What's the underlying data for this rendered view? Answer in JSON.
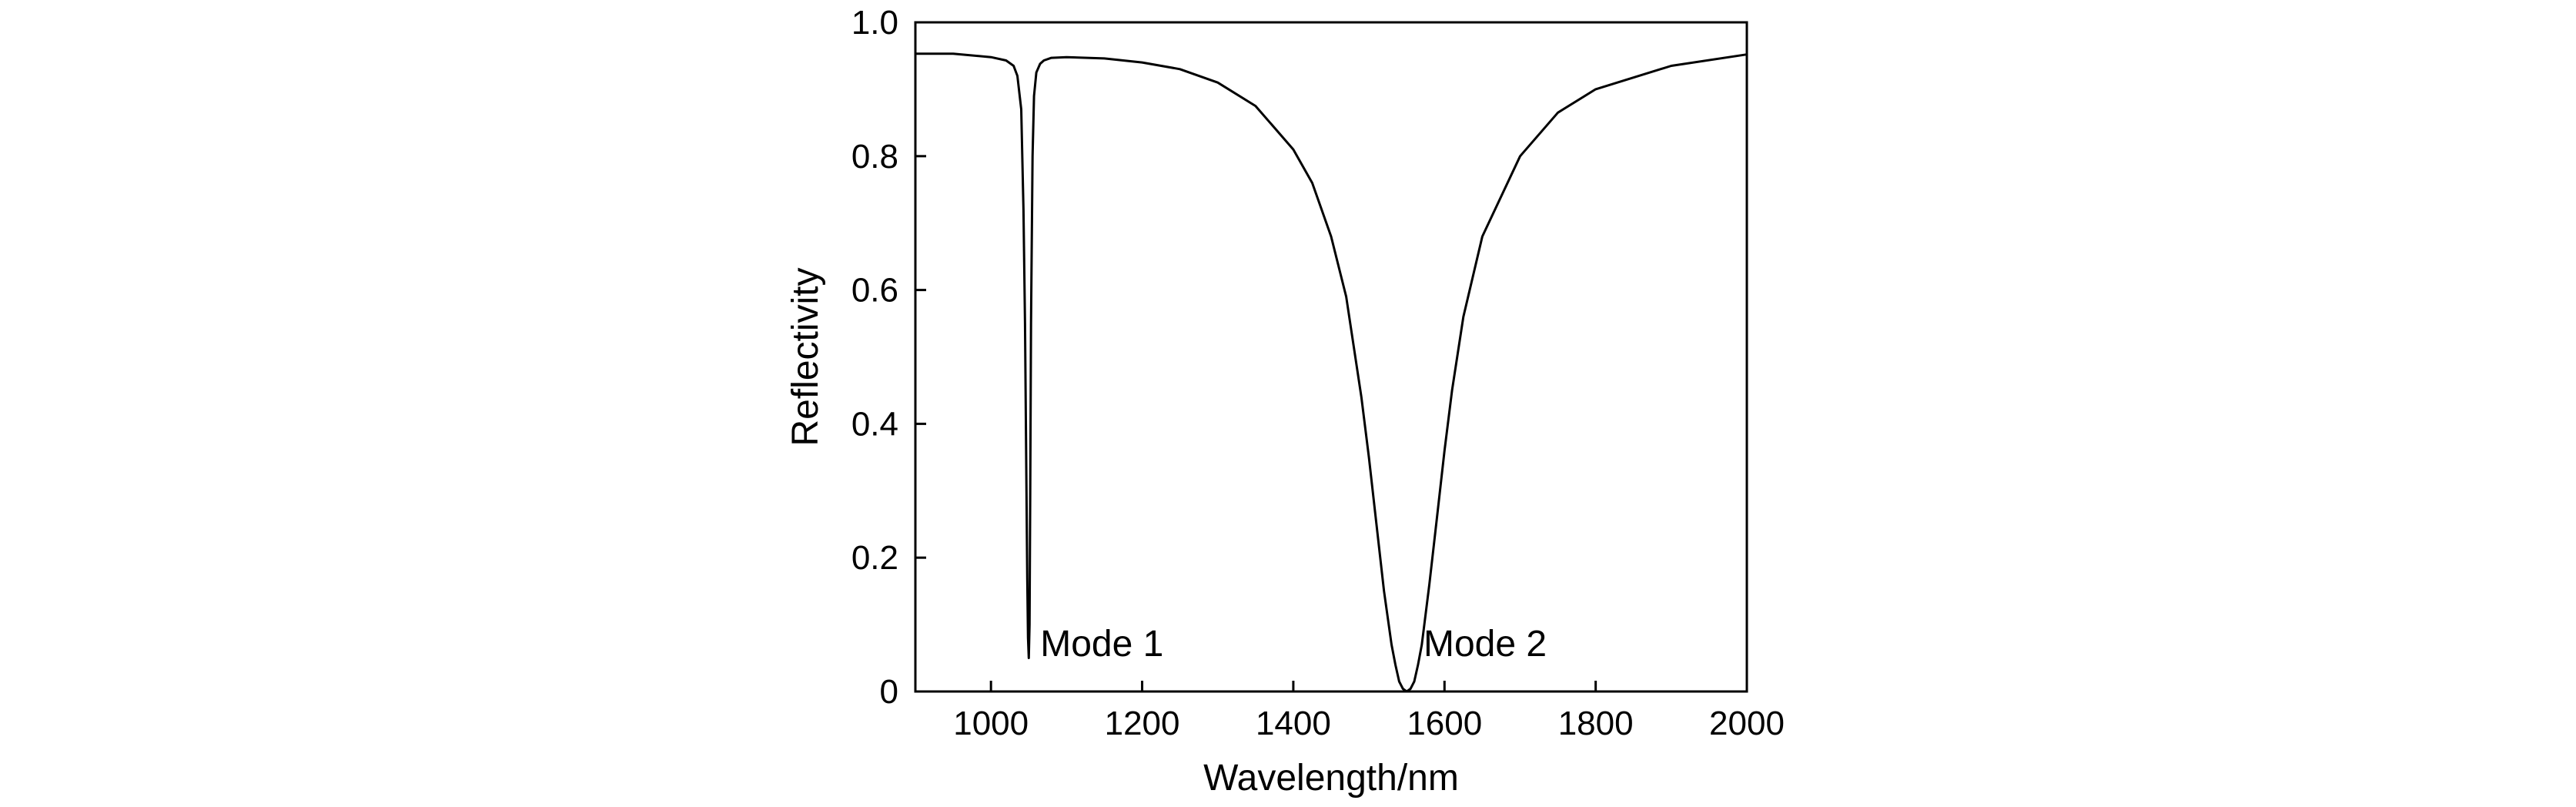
{
  "chart_data": {
    "type": "line",
    "title": "",
    "xlabel": "Wavelength/nm",
    "ylabel": "Reflectivity",
    "xlim": [
      900,
      2000
    ],
    "ylim": [
      0,
      1.0
    ],
    "xticks": [
      {
        "value": 1000,
        "label": "1000"
      },
      {
        "value": 1200,
        "label": "1200"
      },
      {
        "value": 1400,
        "label": "1400"
      },
      {
        "value": 1600,
        "label": "1600"
      },
      {
        "value": 1800,
        "label": "1800"
      },
      {
        "value": 2000,
        "label": "2000"
      }
    ],
    "yticks": [
      {
        "value": 0,
        "label": "0"
      },
      {
        "value": 0.2,
        "label": "0.2"
      },
      {
        "value": 0.4,
        "label": "0.4"
      },
      {
        "value": 0.6,
        "label": "0.6"
      },
      {
        "value": 0.8,
        "label": "0.8"
      },
      {
        "value": 1.0,
        "label": "1.0"
      }
    ],
    "grid": false,
    "legend": "none",
    "line_color": "#000000",
    "series": [
      {
        "x": [
          900,
          950,
          1000,
          1020,
          1030,
          1035,
          1040,
          1043,
          1045,
          1047,
          1048,
          1049,
          1050,
          1051,
          1052,
          1053,
          1055,
          1057,
          1060,
          1065,
          1070,
          1080,
          1100,
          1150,
          1200,
          1250,
          1300,
          1350,
          1400,
          1425,
          1450,
          1470,
          1490,
          1500,
          1510,
          1520,
          1530,
          1535,
          1540,
          1545,
          1550,
          1555,
          1560,
          1565,
          1570,
          1580,
          1590,
          1600,
          1610,
          1625,
          1650,
          1700,
          1750,
          1800,
          1900,
          2000
        ],
        "y": [
          0.953,
          0.953,
          0.948,
          0.943,
          0.935,
          0.92,
          0.87,
          0.72,
          0.55,
          0.3,
          0.17,
          0.08,
          0.05,
          0.1,
          0.3,
          0.55,
          0.8,
          0.89,
          0.925,
          0.938,
          0.943,
          0.947,
          0.948,
          0.946,
          0.94,
          0.93,
          0.91,
          0.875,
          0.81,
          0.76,
          0.68,
          0.59,
          0.44,
          0.35,
          0.25,
          0.15,
          0.07,
          0.04,
          0.015,
          0.004,
          0.0,
          0.004,
          0.015,
          0.04,
          0.07,
          0.16,
          0.26,
          0.36,
          0.45,
          0.56,
          0.68,
          0.8,
          0.865,
          0.9,
          0.935,
          0.952
        ]
      }
    ],
    "annotations": [
      {
        "text": "Mode 1",
        "x": 1053,
        "y": 0.06
      },
      {
        "text": "Mode 2",
        "x": 1560,
        "y": 0.06
      }
    ]
  }
}
